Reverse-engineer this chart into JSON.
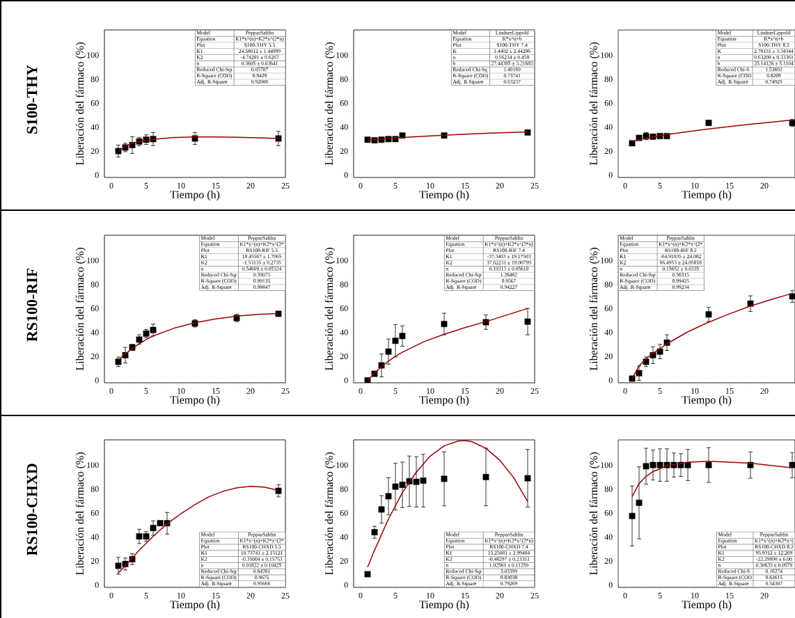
{
  "chart_data": [
    {
      "type": "scatter",
      "title": "S100-THY",
      "xlabel": "Tiempo (h)",
      "ylabel": "Liberación del fármaco (%)",
      "xlim": [
        -1,
        25
      ],
      "ylim": [
        -2,
        121
      ],
      "xticks": [
        0,
        5,
        10,
        15,
        20,
        25
      ],
      "yticks": [
        0,
        20,
        40,
        60,
        80,
        100
      ],
      "marker": "square",
      "annotations": [
        "Model",
        "PeppasSahlin",
        "Equation",
        "K1*x^(n)+K2*x^(2*n)",
        "Plot",
        "S100-THY 5.5",
        "K1",
        "24.58612 ± 1.44999",
        "K2",
        "-4.74281 ± 0.6267",
        "n",
        "0.3605 ± 0.03641",
        "Reduced Chi-Sqr",
        "0.05787",
        "R-Square (COD)",
        "0.9429",
        "Adj. R-Square",
        "0.92006"
      ],
      "series": [
        {
          "type": "scatter",
          "color": "#000000",
          "x": [
            1,
            2,
            3,
            4,
            5,
            6,
            12,
            24
          ],
          "values": [
            20,
            23,
            25,
            28,
            29.5,
            30,
            30.5,
            30.5
          ],
          "errors": [
            5,
            3.5,
            7,
            3.5,
            4,
            5.5,
            5,
            6
          ]
        },
        {
          "type": "line",
          "color": "#990000",
          "marker": "none",
          "x": [
            1,
            2,
            3,
            4,
            6,
            9,
            12,
            15,
            18,
            21,
            24
          ],
          "values": [
            19.8,
            24,
            26.5,
            28,
            29.8,
            31.3,
            31.8,
            31.8,
            31.5,
            31,
            30.5
          ]
        }
      ]
    },
    {
      "type": "scatter",
      "xlabel": "Tiempo (h)",
      "ylabel": "Liberación del fármaco (%)",
      "xlim": [
        -1,
        25
      ],
      "ylim": [
        -2,
        121
      ],
      "xticks": [
        0,
        5,
        10,
        15,
        20,
        25
      ],
      "yticks": [
        0,
        20,
        40,
        60,
        80,
        100
      ],
      "marker": "square",
      "annotations": [
        "Model",
        "LindnerLippold",
        "Equation",
        "K*x^n+b",
        "Plot",
        "S100-THY 7.4",
        "K",
        "1.4402 ± 2.44286",
        "n",
        "0.56234 ± 0.458",
        "b",
        "27.44385 ± 3.21683",
        "Reduced Chi-Sq",
        "1.48169",
        "R-Square (COD)",
        "0.73741",
        "Adj. R-Square",
        "0.63237"
      ],
      "series": [
        {
          "type": "scatter",
          "color": "#000000",
          "x": [
            1,
            2,
            3,
            4,
            5,
            6,
            12,
            24
          ],
          "values": [
            29.5,
            29,
            29.5,
            30,
            30,
            33,
            33,
            35.5
          ]
        },
        {
          "type": "line",
          "color": "#990000",
          "marker": "none",
          "x": [
            1,
            2,
            4,
            6,
            12,
            18,
            24
          ],
          "values": [
            28.9,
            29.6,
            30.6,
            31.4,
            33.3,
            34.8,
            36
          ]
        }
      ]
    },
    {
      "type": "scatter",
      "xlabel": "Tiempo (h)",
      "ylabel": "Liberación del fármaco (%)",
      "xlim": [
        -1,
        24.4
      ],
      "ylim": [
        -2,
        121
      ],
      "xticks": [
        0,
        5,
        10,
        15,
        20
      ],
      "yticks": [
        0,
        20,
        40,
        60,
        80,
        100
      ],
      "marker": "square",
      "annotations": [
        "Model",
        "LindnerLippold",
        "Equation",
        "K*x^n+b",
        "Plot",
        "S100-THY 8.2",
        "K",
        "2.78151 ± 3.34344",
        "n",
        "0.63208 ± 0.33361",
        "b",
        "25.14126 ± 5.1104",
        "Reduced Chi-S",
        "1.53692",
        "R-Square (COD",
        "0.8209",
        "Adj. R-Square",
        "0.74925"
      ],
      "series": [
        {
          "type": "scatter",
          "color": "#000000",
          "x": [
            1,
            2,
            3,
            4,
            5,
            6,
            12,
            24
          ],
          "values": [
            26.5,
            31,
            32.5,
            32,
            32.5,
            32.5,
            43.5,
            43.5
          ],
          "errors": [
            1,
            1,
            3,
            1,
            1,
            1,
            2,
            3
          ]
        },
        {
          "type": "line",
          "color": "#990000",
          "marker": "none",
          "x": [
            1,
            2,
            4,
            6,
            12,
            18,
            24
          ],
          "values": [
            27.9,
            29.4,
            31.8,
            33.8,
            38.5,
            42.4,
            45.9
          ]
        }
      ]
    },
    {
      "type": "scatter",
      "title": "RS100-RIF",
      "xlabel": "Tiempo (h)",
      "ylabel": "Liberación del fármaco (%)",
      "xlim": [
        -1,
        25
      ],
      "ylim": [
        -2,
        121
      ],
      "xticks": [
        0,
        5,
        10,
        15,
        20,
        25
      ],
      "yticks": [
        0,
        20,
        40,
        60,
        80,
        100
      ],
      "marker": "square",
      "annotations": [
        "Model",
        "PeppasSahlin",
        "Equation",
        "K1*x^(n)+K2*x^(2*",
        "Plot",
        "RS100-RIF 5.5",
        "K1",
        "18.45567 ± 1.7065",
        "K2",
        "-1.53135 ± 0.2735",
        "n",
        "0.54609 ± 0.05324",
        "Reduced Chi-Sqr",
        "0.39075",
        "R-Square (COD)",
        "0.99135",
        "Adj. R-Square",
        "0.98847"
      ],
      "series": [
        {
          "type": "scatter",
          "color": "#000000",
          "x": [
            1,
            2,
            3,
            4,
            5,
            6,
            12,
            18,
            24
          ],
          "values": [
            15.5,
            21,
            27.5,
            34,
            39,
            42,
            47.5,
            52,
            55.5
          ],
          "errors": [
            4,
            6.5,
            2.5,
            4,
            3.5,
            5,
            3,
            3,
            1
          ]
        },
        {
          "type": "line",
          "color": "#990000",
          "marker": "none",
          "x": [
            1,
            2,
            3,
            4,
            5,
            6,
            9,
            12,
            15,
            18,
            21,
            24
          ],
          "values": [
            17,
            22,
            26.5,
            30.5,
            34,
            37,
            43.5,
            48,
            51.3,
            53.5,
            55,
            55.8
          ]
        }
      ]
    },
    {
      "type": "scatter",
      "xlabel": "Tiempo (h)",
      "ylabel": "Liberación del fármaco (%)",
      "xlim": [
        -1,
        25
      ],
      "ylim": [
        -2,
        121
      ],
      "xticks": [
        0,
        5,
        10,
        15,
        20,
        25
      ],
      "yticks": [
        0,
        20,
        40,
        60,
        80,
        100
      ],
      "marker": "square",
      "annotations": [
        "Model",
        "PeppasSahlin",
        "Equation",
        "K1*x^(n)+K2*x^(2*n)",
        "Plot",
        "RS100-RIF 7.4",
        "K1",
        "-37.3403 ± 19.17503",
        "K2",
        "37.62231 ± 19.00799",
        "n",
        "0.19313 ± 0.05618",
        "Reduced Chi-Sqr",
        "1.26462",
        "R-Square (COD)",
        "0.9567",
        "Adj. R-Square",
        "0.94227"
      ],
      "series": [
        {
          "type": "scatter",
          "color": "#000000",
          "x": [
            1,
            2,
            3,
            4,
            5,
            6,
            12,
            18,
            24
          ],
          "values": [
            0,
            5.5,
            12.5,
            24,
            33,
            37,
            47,
            48.5,
            49
          ],
          "errors": [
            1,
            1,
            9.5,
            10.5,
            13.5,
            8.5,
            9,
            6,
            11
          ]
        },
        {
          "type": "line",
          "color": "#990000",
          "marker": "none",
          "x": [
            1,
            2,
            3,
            4,
            5,
            6,
            9,
            12,
            15,
            18,
            21,
            24
          ],
          "values": [
            0,
            6,
            11.5,
            16,
            20,
            23.5,
            32,
            38.5,
            44,
            49,
            54.5,
            60
          ]
        }
      ]
    },
    {
      "type": "scatter",
      "xlabel": "Tiempo (h)",
      "ylabel": "Liberación del fármaco (%)",
      "xlim": [
        -1,
        24.4
      ],
      "ylim": [
        -2,
        121
      ],
      "xticks": [
        0,
        5,
        10,
        15,
        20
      ],
      "yticks": [
        0,
        20,
        40,
        60,
        80,
        100
      ],
      "marker": "square",
      "annotations": [
        "Model",
        "PeppasSahlin",
        "Equation",
        "K1*x^(n)+K2*x^(2*",
        "Plot",
        "RS100-RIF 8.2",
        "K1",
        "-64.91035 ± 24.082",
        "K2",
        "66.4953 ± 24.05818",
        "n",
        "0.15652 ± 0.0335",
        "Reduced Chi-Sqr",
        "0.36315",
        "R-Square (COD)",
        "0.99425",
        "Adj. R-Square",
        "0.99234"
      ],
      "series": [
        {
          "type": "scatter",
          "color": "#000000",
          "x": [
            1,
            2,
            3,
            4,
            5,
            6,
            12,
            18,
            24
          ],
          "values": [
            1.5,
            6,
            15.5,
            21,
            24,
            31.5,
            55,
            64,
            70
          ],
          "errors": [
            1,
            6,
            4,
            7,
            6,
            6.5,
            6,
            6.5,
            5
          ]
        },
        {
          "type": "line",
          "color": "#990000",
          "marker": "none",
          "x": [
            1,
            2,
            3,
            4,
            5,
            6,
            9,
            12,
            15,
            18,
            21,
            24
          ],
          "values": [
            1.5,
            12,
            18,
            22.5,
            26.5,
            30.5,
            40.5,
            48.5,
            55.5,
            62,
            67.5,
            72.5
          ]
        }
      ]
    },
    {
      "type": "scatter",
      "title": "RS100-CHXD",
      "xlabel": "Tiempo (h)",
      "ylabel": "Liberación del fármaco (%)",
      "xlim": [
        -1,
        25
      ],
      "ylim": [
        -2,
        121
      ],
      "xticks": [
        0,
        5,
        10,
        15,
        20,
        25
      ],
      "yticks": [
        0,
        20,
        40,
        60,
        80,
        100
      ],
      "marker": "square",
      "annotations": [
        "Model",
        "PeppasSahlin",
        "Equation",
        "K1*x^(n)+K2*x^(2*",
        "Plot",
        "RS100-CHXD 5.5",
        "K1",
        "10.73741 ± 2.15121",
        "K2",
        "-0.35004 ± 0.15753",
        "n",
        "0.91822 ± 0.10425",
        "Reduced Chi-Sqr",
        "0.64261",
        "R-Square (COD)",
        "0.9675",
        "Adj. R-Square",
        "0.95666"
      ],
      "series": [
        {
          "type": "scatter",
          "color": "#000000",
          "x": [
            1,
            2,
            3,
            4,
            5,
            6,
            7,
            8,
            24
          ],
          "values": [
            16,
            17.5,
            21.5,
            40.5,
            40.5,
            47.5,
            51.5,
            51.5,
            78.5
          ],
          "errors": [
            7,
            5,
            4.5,
            6,
            4,
            6,
            2,
            9,
            5
          ]
        },
        {
          "type": "line",
          "color": "#990000",
          "marker": "none",
          "x": [
            1,
            2,
            4,
            6,
            8,
            10,
            12,
            14,
            16,
            18,
            20,
            22,
            24
          ],
          "values": [
            10,
            16,
            29,
            40.5,
            51,
            59.5,
            67,
            73.5,
            78,
            81,
            82.3,
            81.5,
            78.8
          ]
        }
      ]
    },
    {
      "type": "scatter",
      "xlabel": "Tiempo (h)",
      "ylabel": "Liberación del fármaco (%)",
      "xlim": [
        -1,
        25
      ],
      "ylim": [
        -2,
        121
      ],
      "xticks": [
        0,
        5,
        10,
        15,
        20,
        25
      ],
      "yticks": [
        0,
        20,
        40,
        60,
        80,
        100
      ],
      "marker": "square",
      "annotations": [
        "Model",
        "PeppasSahlin",
        "Equation",
        "K1*x^(n)+K2*x^(2*n)",
        "Plot",
        "RS100-CHXD 7.4",
        "K1",
        "15.25081 ± 2.99404",
        "K2",
        "-0.48297 ± 0.23353",
        "n",
        "1.02561 ± 0.11259",
        "Reduced Chi-Sqr",
        "3.03399",
        "R-Square (COD)",
        "0.83038",
        "Adj. R-Square",
        "0.79269"
      ],
      "series": [
        {
          "type": "scatter",
          "color": "#000000",
          "x": [
            1,
            2,
            3,
            4,
            5,
            6,
            7,
            8,
            9,
            12,
            18,
            24
          ],
          "values": [
            9,
            44,
            63,
            74,
            82,
            83.5,
            86.5,
            86,
            87,
            88.5,
            90,
            89
          ],
          "errors": [
            1,
            5,
            11.5,
            15.5,
            19.5,
            19,
            21,
            21,
            22,
            22.5,
            24,
            24
          ]
        },
        {
          "type": "line",
          "color": "#990000",
          "marker": "none",
          "x": [
            1,
            2,
            4,
            6,
            8,
            10,
            12,
            14,
            15,
            16,
            18,
            20,
            22,
            24
          ],
          "values": [
            14.8,
            29,
            55,
            77,
            94,
            107.5,
            116,
            120,
            120.4,
            119.4,
            114,
            104,
            89.3,
            69.6
          ]
        }
      ]
    },
    {
      "type": "scatter",
      "xlabel": "Tiempo (h)",
      "ylabel": "Liberación del fármaco (%)",
      "xlim": [
        -1,
        24.4
      ],
      "ylim": [
        -2,
        121
      ],
      "xticks": [
        0,
        5,
        10,
        15,
        20
      ],
      "yticks": [
        0,
        20,
        40,
        60,
        80,
        100
      ],
      "marker": "square",
      "annotations": [
        "Model",
        "PeppasSahlin",
        "Equation",
        "K1*x^(n)+K2*x^(",
        "Plot",
        "RS100-CHXD 8.2",
        "K1",
        "95.9312 ± 12.269",
        "K2",
        "-22.29898 ± 6.00",
        "n",
        "0.30633 ± 0.0579",
        "Reduced Chi-S",
        "0.16274",
        "R-Square (COD",
        "0.62615",
        "Adj. R-Square",
        "0.54307"
      ],
      "series": [
        {
          "type": "scatter",
          "color": "#000000",
          "x": [
            1,
            2,
            3,
            4,
            5,
            6,
            7,
            8,
            9,
            12,
            18,
            24
          ],
          "values": [
            57.5,
            68.5,
            99,
            100,
            100,
            100,
            100,
            100,
            100,
            100,
            100,
            100
          ],
          "errors": [
            25,
            30,
            15,
            12.5,
            13.5,
            13.5,
            10,
            9.5,
            13,
            14.5,
            11,
            10.5
          ]
        },
        {
          "type": "line",
          "color": "#990000",
          "marker": "none",
          "x": [
            1,
            2,
            3,
            4,
            6,
            9,
            12,
            18,
            24
          ],
          "values": [
            73.6,
            84.5,
            90.5,
            94.5,
            99.3,
            102.3,
            103.1,
            101.5,
            97.7
          ]
        }
      ]
    }
  ]
}
